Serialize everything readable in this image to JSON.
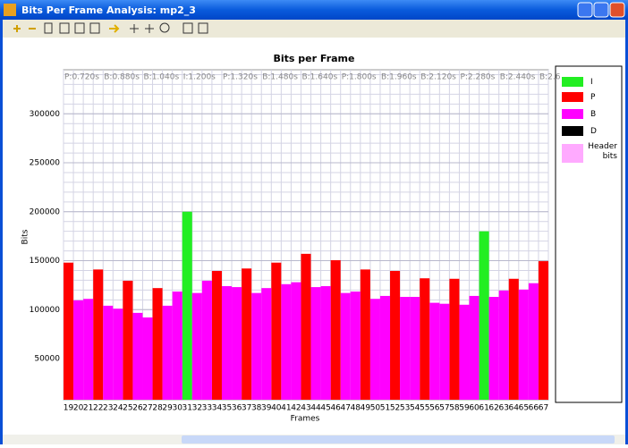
{
  "window_title": "Bits Per Frame Analysis: mp2_3",
  "chart_data": {
    "type": "bar",
    "title": "Bits per Frame",
    "x_label": "Frames",
    "y_label": "Bits",
    "categories": [
      "19",
      "20",
      "21",
      "22",
      "23",
      "24",
      "25",
      "26",
      "27",
      "28",
      "29",
      "30",
      "31",
      "32",
      "33",
      "34",
      "35",
      "36",
      "37",
      "38",
      "39",
      "40",
      "41",
      "42",
      "43",
      "44",
      "45",
      "46",
      "47",
      "48",
      "49",
      "50",
      "51",
      "52",
      "53",
      "54",
      "55",
      "56",
      "57",
      "58",
      "59",
      "60",
      "61",
      "62",
      "63",
      "64",
      "65",
      "66",
      "67"
    ],
    "time_labels": [
      "P:0.720s",
      "B:0.880s",
      "B:1.040s",
      "I:1.200s",
      "P:1.320s",
      "B:1.480s",
      "B:1.640s",
      "P:1.800s",
      "B:1.960s",
      "B:2.120s",
      "P:2.280s",
      "B:2.440s",
      "B:2.6"
    ],
    "series": [
      {
        "name": "I",
        "color": "#22ee22",
        "values": [
          null,
          null,
          null,
          null,
          null,
          null,
          null,
          null,
          null,
          null,
          null,
          null,
          200000,
          null,
          null,
          null,
          null,
          null,
          null,
          null,
          null,
          null,
          null,
          null,
          null,
          null,
          null,
          null,
          null,
          null,
          null,
          null,
          null,
          null,
          null,
          null,
          null,
          null,
          null,
          null,
          null,
          null,
          180000,
          null,
          null,
          null,
          null,
          null,
          null
        ]
      },
      {
        "name": "P",
        "color": "#ff0000",
        "values": [
          148000,
          null,
          null,
          141000,
          null,
          null,
          129500,
          null,
          null,
          122000,
          null,
          null,
          null,
          null,
          null,
          139500,
          null,
          null,
          142000,
          null,
          null,
          148000,
          null,
          null,
          157000,
          null,
          null,
          150500,
          null,
          null,
          141000,
          null,
          null,
          139500,
          null,
          null,
          132000,
          null,
          null,
          131500,
          null,
          null,
          null,
          null,
          null,
          131500,
          null,
          null,
          149500
        ]
      },
      {
        "name": "B",
        "color": "#ff00ff",
        "values": [
          null,
          109500,
          111000,
          null,
          104000,
          101000,
          null,
          96700,
          92000,
          null,
          104000,
          118500,
          null,
          117000,
          129500,
          null,
          124000,
          123000,
          null,
          117000,
          122000,
          null,
          126000,
          128000,
          null,
          123000,
          124000,
          null,
          117000,
          118500,
          null,
          111000,
          114000,
          null,
          113000,
          113000,
          null,
          107000,
          106000,
          null,
          105000,
          114000,
          null,
          113000,
          119500,
          null,
          120500,
          127000,
          null
        ]
      },
      {
        "name": "D",
        "color": "#000000",
        "values": [
          null,
          null,
          null,
          null,
          null,
          null,
          null,
          null,
          null,
          null,
          null,
          null,
          null,
          null,
          null,
          null,
          null,
          null,
          null,
          null,
          null,
          null,
          null,
          null,
          null,
          null,
          null,
          null,
          null,
          null,
          null,
          null,
          null,
          null,
          null,
          null,
          null,
          null,
          null,
          null,
          null,
          null,
          null,
          null,
          null,
          null,
          null,
          null,
          null
        ]
      },
      {
        "name": "Header bits",
        "color": "#ffaaff",
        "values": [
          null,
          null,
          null,
          null,
          null,
          null,
          null,
          null,
          null,
          null,
          null,
          null,
          null,
          null,
          null,
          null,
          null,
          null,
          null,
          null,
          null,
          null,
          null,
          null,
          null,
          null,
          null,
          null,
          null,
          null,
          null,
          null,
          null,
          null,
          null,
          null,
          null,
          null,
          null,
          null,
          null,
          null,
          null,
          null,
          null,
          null,
          null,
          null,
          null
        ]
      }
    ],
    "ylim": [
      8000,
      345000
    ],
    "yticks": [
      50000,
      100000,
      150000,
      200000,
      250000,
      300000
    ],
    "grid": true,
    "legend": "right"
  }
}
